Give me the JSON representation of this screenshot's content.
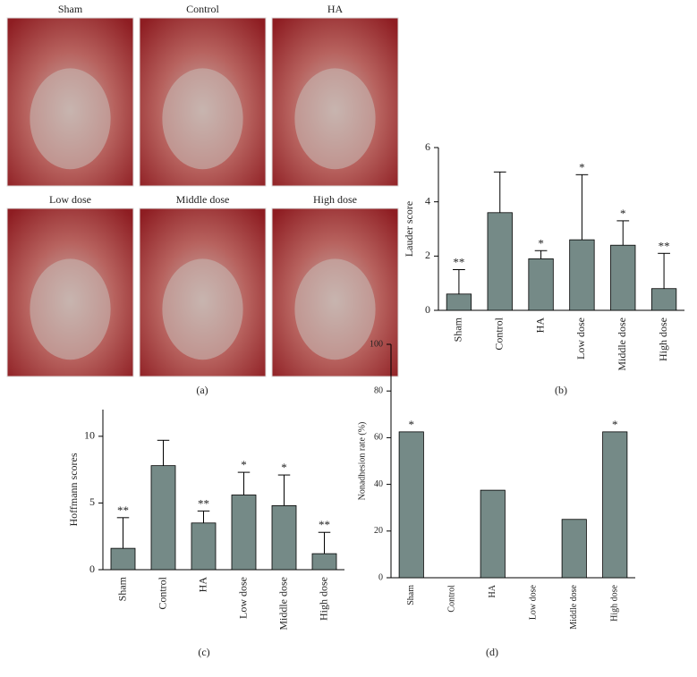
{
  "photos": {
    "labels": [
      "Sham",
      "Control",
      "HA",
      "Low dose",
      "Middle dose",
      "High dose"
    ],
    "caption": "(a)"
  },
  "chart_data": [
    {
      "type": "bar",
      "y_label": "Lauder score",
      "caption": "(b)",
      "color": "#758a87",
      "categories": [
        "Sham",
        "Control",
        "HA",
        "Low dose",
        "Middle dose",
        "High dose"
      ],
      "values": [
        0.6,
        3.6,
        1.9,
        2.6,
        2.4,
        0.8
      ],
      "errors": [
        0.9,
        1.5,
        0.3,
        2.4,
        0.9,
        1.3
      ],
      "annotations": [
        "**",
        null,
        "*",
        "*",
        "*",
        "**"
      ],
      "ylim": [
        0,
        6
      ],
      "yticks": [
        0,
        2,
        4,
        6
      ]
    },
    {
      "type": "bar",
      "y_label": "Hoffmann scores",
      "caption": "(c)",
      "color": "#758a87",
      "categories": [
        "Sham",
        "Control",
        "HA",
        "Low dose",
        "Middle dose",
        "High dose"
      ],
      "values": [
        1.6,
        7.8,
        3.5,
        5.6,
        4.8,
        1.2
      ],
      "errors": [
        2.3,
        1.9,
        0.9,
        1.7,
        2.3,
        1.6
      ],
      "annotations": [
        "**",
        null,
        "**",
        "*",
        "*",
        "**"
      ],
      "ylim": [
        0,
        12
      ],
      "yticks": [
        0,
        5,
        10
      ]
    },
    {
      "type": "bar",
      "y_label": "Nonadhesion rate (%)",
      "caption": "(d)",
      "color": "#758a87",
      "categories": [
        "Sham",
        "Control",
        "HA",
        "Low dose",
        "Middle dose",
        "High dose"
      ],
      "values": [
        62.5,
        0,
        37.5,
        0,
        25,
        62.5
      ],
      "annotations": [
        "*",
        null,
        null,
        null,
        null,
        "*"
      ],
      "ylim": [
        0,
        100
      ],
      "yticks": [
        0,
        20,
        40,
        60,
        80,
        100
      ]
    }
  ]
}
